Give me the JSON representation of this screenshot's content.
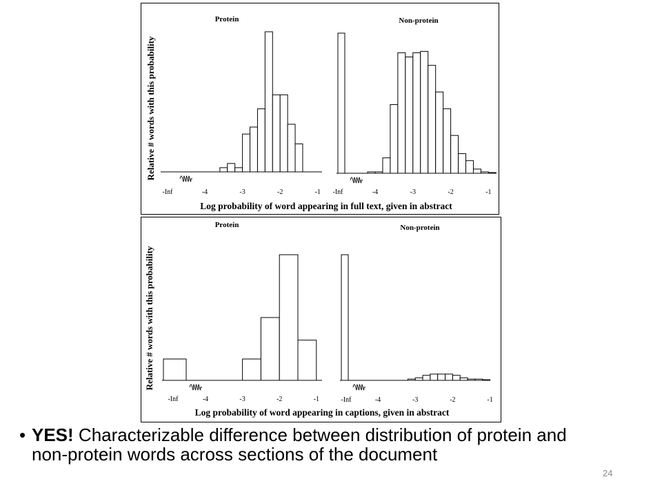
{
  "slide": {
    "bullet_strong": "YES!",
    "bullet_rest": " Characterizable difference between distribution of protein and non-protein words across sections of the document",
    "page_number": "24"
  },
  "chart_data": [
    {
      "type": "bar",
      "panel": "top",
      "ylabel": "Relative # words with this probability",
      "xlabel": "Log probability of word appearing in full text, given in abstract",
      "subplots": [
        {
          "title": "Protein",
          "tick_labels": [
            "-Inf",
            "-4",
            "-3",
            "-2",
            "-1"
          ],
          "axis_break": true,
          "inf_bar": 0,
          "bin_width": 0.2,
          "bins": [
            {
              "x": -3.5,
              "value": 3
            },
            {
              "x": -3.3,
              "value": 6
            },
            {
              "x": -3.1,
              "value": 3
            },
            {
              "x": -2.9,
              "value": 27
            },
            {
              "x": -2.7,
              "value": 32
            },
            {
              "x": -2.5,
              "value": 45
            },
            {
              "x": -2.3,
              "value": 100
            },
            {
              "x": -2.1,
              "value": 55
            },
            {
              "x": -1.9,
              "value": 55
            },
            {
              "x": -1.7,
              "value": 34
            },
            {
              "x": -1.5,
              "value": 20
            }
          ]
        },
        {
          "title": "Non-protein",
          "tick_labels": [
            "-Inf",
            "-4",
            "-3",
            "-2",
            "-1"
          ],
          "axis_break": true,
          "inf_bar": 100,
          "bin_width": 0.2,
          "bins": [
            {
              "x": -4.1,
              "value": 1
            },
            {
              "x": -3.9,
              "value": 1
            },
            {
              "x": -3.7,
              "value": 11
            },
            {
              "x": -3.5,
              "value": 49
            },
            {
              "x": -3.3,
              "value": 86
            },
            {
              "x": -3.1,
              "value": 83
            },
            {
              "x": -2.9,
              "value": 86
            },
            {
              "x": -2.7,
              "value": 87
            },
            {
              "x": -2.5,
              "value": 77
            },
            {
              "x": -2.3,
              "value": 58
            },
            {
              "x": -2.1,
              "value": 46
            },
            {
              "x": -1.9,
              "value": 27
            },
            {
              "x": -1.7,
              "value": 14
            },
            {
              "x": -1.5,
              "value": 9
            },
            {
              "x": -1.3,
              "value": 3
            },
            {
              "x": -1.1,
              "value": 1
            },
            {
              "x": -0.9,
              "value": 0.5
            }
          ]
        }
      ]
    },
    {
      "type": "bar",
      "panel": "bottom",
      "ylabel": "Relative # words with this probability",
      "xlabel": "Log probability of word appearing in captions, given in abstract",
      "subplots": [
        {
          "title": "Protein",
          "tick_labels": [
            "-Inf",
            "-4",
            "-3",
            "-2",
            "-1"
          ],
          "axis_break": true,
          "inf_bar": 17,
          "bin_width": 0.5,
          "bins": [
            {
              "x": -2.75,
              "value": 17
            },
            {
              "x": -2.25,
              "value": 50
            },
            {
              "x": -1.75,
              "value": 100
            },
            {
              "x": -1.25,
              "value": 32
            }
          ]
        },
        {
          "title": "Non-protein",
          "tick_labels": [
            "-Inf",
            "-4",
            "-3",
            "-2",
            "-1"
          ],
          "axis_break": true,
          "inf_bar": 100,
          "bin_width": 0.2,
          "bins": [
            {
              "x": -3.1,
              "value": 1
            },
            {
              "x": -2.9,
              "value": 2
            },
            {
              "x": -2.7,
              "value": 4
            },
            {
              "x": -2.5,
              "value": 5
            },
            {
              "x": -2.3,
              "value": 5
            },
            {
              "x": -2.1,
              "value": 5
            },
            {
              "x": -1.9,
              "value": 4
            },
            {
              "x": -1.7,
              "value": 2
            },
            {
              "x": -1.5,
              "value": 1
            },
            {
              "x": -1.3,
              "value": 1
            },
            {
              "x": -1.1,
              "value": 0.5
            }
          ]
        }
      ]
    }
  ]
}
